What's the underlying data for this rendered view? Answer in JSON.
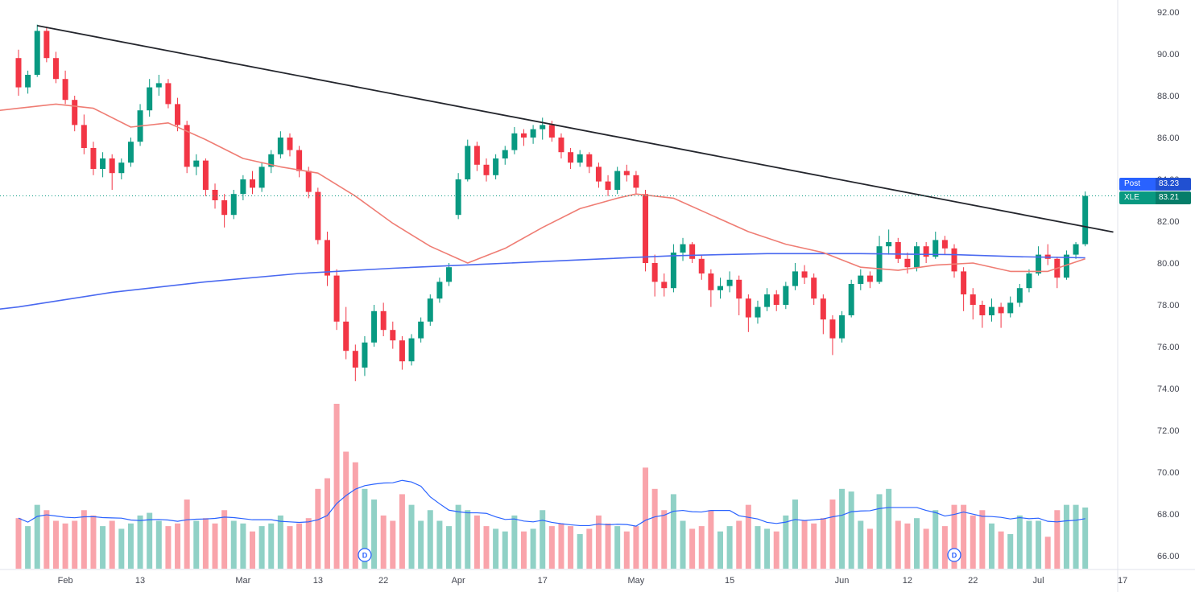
{
  "badges": {
    "post_label": "Post",
    "post_value": "83.23",
    "symbol_label": "XLE",
    "last_value": "83.21"
  },
  "chart_data": {
    "type": "candlestick",
    "symbol": "XLE",
    "last_price": 83.21,
    "post_market_price": 83.23,
    "price_line": 83.21,
    "dividend_label": "D",
    "dividend_marker_indices": [
      37,
      100
    ],
    "volume_scale_max": 62,
    "trendline": {
      "from": [
        2,
        91.35
      ],
      "to": [
        117,
        81.48
      ]
    },
    "y_ticks": [
      {
        "label": "92.00",
        "value": 92
      },
      {
        "label": "90.00",
        "value": 90
      },
      {
        "label": "88.00",
        "value": 88
      },
      {
        "label": "86.00",
        "value": 86
      },
      {
        "label": "84.00",
        "value": 84
      },
      {
        "label": "82.00",
        "value": 82
      },
      {
        "label": "80.00",
        "value": 80
      },
      {
        "label": "78.00",
        "value": 78
      },
      {
        "label": "76.00",
        "value": 76
      },
      {
        "label": "74.00",
        "value": 74
      },
      {
        "label": "72.00",
        "value": 72
      },
      {
        "label": "70.00",
        "value": 70
      },
      {
        "label": "68.00",
        "value": 68
      },
      {
        "label": "66.00",
        "value": 66
      }
    ],
    "x_ticks": [
      {
        "label": "Feb",
        "index": 5
      },
      {
        "label": "13",
        "index": 13
      },
      {
        "label": "Mar",
        "index": 24
      },
      {
        "label": "13",
        "index": 32
      },
      {
        "label": "22",
        "index": 39
      },
      {
        "label": "Apr",
        "index": 47
      },
      {
        "label": "17",
        "index": 56
      },
      {
        "label": "May",
        "index": 66
      },
      {
        "label": "15",
        "index": 76
      },
      {
        "label": "Jun",
        "index": 88
      },
      {
        "label": "12",
        "index": 95
      },
      {
        "label": "22",
        "index": 102
      },
      {
        "label": "Jul",
        "index": 109
      },
      {
        "label": "17",
        "index": 118
      }
    ],
    "ma_fast_points": [
      [
        -2,
        87.3
      ],
      [
        0,
        87.4
      ],
      [
        4,
        87.6
      ],
      [
        8,
        87.4
      ],
      [
        12,
        86.5
      ],
      [
        16,
        86.7
      ],
      [
        20,
        85.9
      ],
      [
        24,
        85.0
      ],
      [
        28,
        84.6
      ],
      [
        32,
        84.3
      ],
      [
        36,
        83.2
      ],
      [
        40,
        81.9
      ],
      [
        44,
        80.8
      ],
      [
        48,
        80.0
      ],
      [
        52,
        80.7
      ],
      [
        56,
        81.7
      ],
      [
        60,
        82.6
      ],
      [
        64,
        83.1
      ],
      [
        66,
        83.3
      ],
      [
        70,
        83.1
      ],
      [
        74,
        82.3
      ],
      [
        78,
        81.5
      ],
      [
        82,
        80.9
      ],
      [
        86,
        80.5
      ],
      [
        90,
        79.8
      ],
      [
        94,
        79.65
      ],
      [
        98,
        79.9
      ],
      [
        102,
        80.0
      ],
      [
        106,
        79.6
      ],
      [
        110,
        79.6
      ],
      [
        114,
        80.2
      ]
    ],
    "ma_slow_points": [
      [
        -2,
        77.8
      ],
      [
        0,
        77.9
      ],
      [
        10,
        78.6
      ],
      [
        20,
        79.1
      ],
      [
        30,
        79.5
      ],
      [
        40,
        79.75
      ],
      [
        50,
        79.95
      ],
      [
        60,
        80.15
      ],
      [
        70,
        80.35
      ],
      [
        80,
        80.45
      ],
      [
        90,
        80.45
      ],
      [
        100,
        80.4
      ],
      [
        107,
        80.3
      ],
      [
        114,
        80.25
      ]
    ],
    "candles": [
      [
        89.8,
        90.2,
        88.0,
        88.4,
        19
      ],
      [
        88.4,
        89.2,
        88.1,
        89.0,
        16
      ],
      [
        89.0,
        91.4,
        88.9,
        91.1,
        24
      ],
      [
        91.1,
        91.3,
        89.6,
        89.8,
        22
      ],
      [
        89.8,
        90.1,
        88.6,
        88.8,
        18
      ],
      [
        88.8,
        89.2,
        87.6,
        87.8,
        17
      ],
      [
        87.8,
        88.0,
        86.3,
        86.6,
        18
      ],
      [
        86.6,
        87.1,
        85.2,
        85.5,
        22
      ],
      [
        85.5,
        85.8,
        84.2,
        84.5,
        20
      ],
      [
        84.5,
        85.3,
        84.1,
        85.0,
        16
      ],
      [
        85.0,
        85.2,
        83.5,
        84.3,
        18
      ],
      [
        84.3,
        85.0,
        84.0,
        84.8,
        15
      ],
      [
        84.8,
        86.0,
        84.6,
        85.8,
        17
      ],
      [
        85.8,
        87.6,
        85.6,
        87.3,
        20
      ],
      [
        87.3,
        88.8,
        87.0,
        88.4,
        21
      ],
      [
        88.4,
        89.0,
        88.0,
        88.6,
        18
      ],
      [
        88.6,
        88.8,
        87.4,
        87.6,
        16
      ],
      [
        87.6,
        87.9,
        86.3,
        86.6,
        17
      ],
      [
        86.6,
        86.8,
        84.3,
        84.6,
        26
      ],
      [
        84.6,
        85.2,
        84.2,
        84.9,
        18
      ],
      [
        84.9,
        85.0,
        83.2,
        83.5,
        19
      ],
      [
        83.5,
        83.8,
        82.6,
        83.0,
        17
      ],
      [
        83.0,
        83.3,
        81.7,
        82.3,
        22
      ],
      [
        82.3,
        83.5,
        82.1,
        83.3,
        18
      ],
      [
        83.3,
        84.2,
        83.0,
        84.0,
        17
      ],
      [
        84.0,
        84.4,
        83.3,
        83.6,
        14
      ],
      [
        83.6,
        84.8,
        83.4,
        84.6,
        16
      ],
      [
        84.6,
        85.4,
        84.3,
        85.2,
        17
      ],
      [
        85.2,
        86.3,
        85.0,
        86.0,
        20
      ],
      [
        86.0,
        86.2,
        85.1,
        85.4,
        16
      ],
      [
        85.4,
        85.6,
        84.1,
        84.4,
        17
      ],
      [
        84.4,
        84.6,
        83.1,
        83.4,
        19
      ],
      [
        83.4,
        83.6,
        80.9,
        81.1,
        30
      ],
      [
        81.1,
        81.5,
        78.9,
        79.4,
        34
      ],
      [
        79.4,
        79.7,
        76.8,
        77.2,
        62
      ],
      [
        77.2,
        77.9,
        75.4,
        75.8,
        44
      ],
      [
        75.8,
        76.1,
        74.35,
        75.0,
        40
      ],
      [
        75.0,
        76.5,
        74.6,
        76.2,
        30
      ],
      [
        76.2,
        78.0,
        76.0,
        77.7,
        26
      ],
      [
        77.7,
        78.1,
        76.5,
        76.8,
        20
      ],
      [
        76.8,
        77.2,
        75.9,
        76.3,
        18
      ],
      [
        76.3,
        76.5,
        74.9,
        75.3,
        28
      ],
      [
        75.3,
        76.6,
        75.1,
        76.4,
        24
      ],
      [
        76.4,
        77.4,
        76.2,
        77.2,
        18
      ],
      [
        77.2,
        78.5,
        77.0,
        78.3,
        22
      ],
      [
        78.3,
        79.3,
        78.1,
        79.1,
        18
      ],
      [
        79.1,
        80.0,
        78.9,
        79.8,
        16
      ],
      [
        82.3,
        84.3,
        82.1,
        84.0,
        24
      ],
      [
        84.0,
        85.9,
        83.9,
        85.6,
        22
      ],
      [
        85.6,
        85.8,
        84.4,
        84.7,
        20
      ],
      [
        84.7,
        85.0,
        83.9,
        84.2,
        16
      ],
      [
        84.2,
        85.2,
        84.0,
        85.0,
        15
      ],
      [
        85.0,
        85.6,
        84.7,
        85.4,
        14
      ],
      [
        85.4,
        86.5,
        85.2,
        86.2,
        20
      ],
      [
        86.2,
        86.4,
        85.6,
        86.0,
        14
      ],
      [
        86.0,
        86.6,
        85.7,
        86.4,
        15
      ],
      [
        86.4,
        86.95,
        85.9,
        86.6,
        22
      ],
      [
        86.6,
        86.8,
        85.8,
        86.0,
        16
      ],
      [
        86.0,
        86.2,
        85.0,
        85.3,
        17
      ],
      [
        85.3,
        85.5,
        84.5,
        84.8,
        16
      ],
      [
        84.8,
        85.4,
        84.6,
        85.2,
        13
      ],
      [
        85.2,
        85.3,
        84.3,
        84.6,
        15
      ],
      [
        84.6,
        84.8,
        83.6,
        83.9,
        20
      ],
      [
        83.9,
        84.2,
        83.2,
        83.5,
        17
      ],
      [
        83.5,
        84.6,
        83.3,
        84.4,
        16
      ],
      [
        84.4,
        84.7,
        83.9,
        84.2,
        14
      ],
      [
        84.2,
        84.4,
        83.3,
        83.6,
        16
      ],
      [
        83.3,
        83.5,
        79.6,
        80.0,
        38
      ],
      [
        80.0,
        80.4,
        78.4,
        79.1,
        30
      ],
      [
        79.1,
        79.5,
        78.4,
        78.8,
        22
      ],
      [
        78.8,
        80.9,
        78.6,
        80.5,
        28
      ],
      [
        80.5,
        81.2,
        80.1,
        80.9,
        18
      ],
      [
        80.9,
        81.0,
        80.0,
        80.2,
        15
      ],
      [
        80.2,
        80.4,
        79.2,
        79.5,
        16
      ],
      [
        79.5,
        79.7,
        77.9,
        78.7,
        22
      ],
      [
        78.7,
        79.3,
        78.3,
        78.9,
        14
      ],
      [
        78.9,
        79.6,
        78.6,
        79.2,
        16
      ],
      [
        79.2,
        79.4,
        77.5,
        78.3,
        18
      ],
      [
        78.3,
        78.5,
        76.7,
        77.4,
        24
      ],
      [
        77.4,
        78.2,
        77.1,
        77.9,
        16
      ],
      [
        77.9,
        78.8,
        77.7,
        78.5,
        15
      ],
      [
        78.5,
        78.7,
        77.7,
        78.0,
        14
      ],
      [
        78.0,
        79.1,
        77.8,
        78.9,
        20
      ],
      [
        78.9,
        80.0,
        78.7,
        79.6,
        26
      ],
      [
        79.6,
        79.9,
        79.0,
        79.3,
        18
      ],
      [
        79.3,
        79.5,
        78.0,
        78.3,
        17
      ],
      [
        78.3,
        78.5,
        76.6,
        77.3,
        19
      ],
      [
        77.3,
        77.5,
        75.6,
        76.4,
        26
      ],
      [
        76.4,
        77.7,
        76.2,
        77.5,
        30
      ],
      [
        77.5,
        79.2,
        77.4,
        79.0,
        29
      ],
      [
        79.0,
        79.7,
        78.7,
        79.4,
        18
      ],
      [
        79.4,
        79.6,
        78.8,
        79.1,
        15
      ],
      [
        79.1,
        81.3,
        79.0,
        80.8,
        28
      ],
      [
        80.8,
        81.6,
        80.4,
        81.0,
        30
      ],
      [
        81.0,
        81.2,
        80.0,
        80.2,
        18
      ],
      [
        80.2,
        80.5,
        79.5,
        79.8,
        17
      ],
      [
        79.8,
        81.0,
        79.6,
        80.8,
        19
      ],
      [
        80.8,
        81.0,
        80.0,
        80.3,
        15
      ],
      [
        80.3,
        81.5,
        80.2,
        81.1,
        22
      ],
      [
        81.1,
        81.3,
        80.4,
        80.7,
        16
      ],
      [
        80.7,
        80.9,
        79.3,
        79.6,
        24
      ],
      [
        79.6,
        79.8,
        77.7,
        78.5,
        24
      ],
      [
        78.5,
        78.8,
        77.3,
        78.0,
        20
      ],
      [
        78.0,
        78.2,
        76.9,
        77.5,
        22
      ],
      [
        77.5,
        78.3,
        77.2,
        77.9,
        17
      ],
      [
        77.9,
        78.1,
        76.9,
        77.6,
        14
      ],
      [
        77.6,
        78.4,
        77.4,
        78.1,
        13
      ],
      [
        78.1,
        79.0,
        77.9,
        78.8,
        20
      ],
      [
        78.8,
        79.7,
        78.6,
        79.5,
        18
      ],
      [
        79.5,
        80.8,
        79.4,
        80.4,
        18
      ],
      [
        80.4,
        80.9,
        79.9,
        80.2,
        12
      ],
      [
        80.2,
        80.3,
        78.8,
        79.3,
        22
      ],
      [
        79.3,
        80.6,
        79.2,
        80.4,
        24
      ],
      [
        80.4,
        81.0,
        80.2,
        80.9,
        24
      ],
      [
        80.9,
        83.42,
        80.8,
        83.21,
        23
      ]
    ],
    "colors": {
      "up": "#089981",
      "down": "#f23645",
      "up_volume": "rgba(8,153,129,0.45)",
      "down_volume": "rgba(242,54,69,0.45)",
      "ma_fast": "#ef7d74",
      "ma_slow": "#4a69f0",
      "volume_ma": "#2962ff",
      "trendline": "#24262d",
      "price_line": "#089981",
      "post_badge": "#2962ff",
      "last_badge": "#089981",
      "dividend": "#2962ff",
      "axis_text": "#434651",
      "axis_line": "#e0e3eb",
      "background": "#ffffff"
    }
  }
}
